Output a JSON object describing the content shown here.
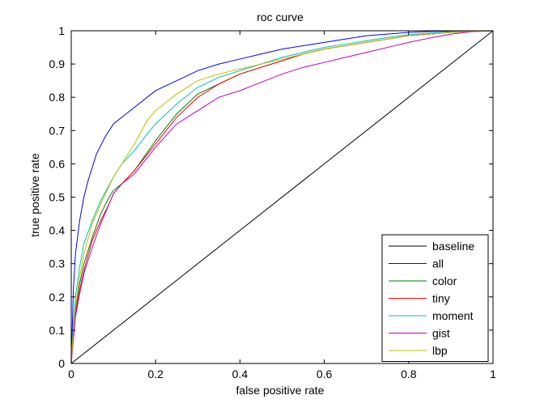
{
  "chart_data": {
    "type": "line",
    "title": "roc curve",
    "xlabel": "false positive rate",
    "ylabel": "true positive rate",
    "xlim": [
      0,
      1
    ],
    "ylim": [
      0,
      1
    ],
    "xticks": [
      "0",
      "0.2",
      "0.4",
      "0.6",
      "0.8",
      "1"
    ],
    "yticks": [
      "0",
      "0.1",
      "0.2",
      "0.3",
      "0.4",
      "0.5",
      "0.6",
      "0.7",
      "0.8",
      "0.9",
      "1"
    ],
    "grid": false,
    "legend_position": "bottom-right",
    "series": [
      {
        "name": "baseline",
        "color": "#000000",
        "x": [
          0,
          1
        ],
        "y": [
          0,
          1
        ]
      },
      {
        "name": "all",
        "color": "#0000ff",
        "x": [
          0,
          0.005,
          0.01,
          0.02,
          0.03,
          0.04,
          0.05,
          0.06,
          0.08,
          0.1,
          0.12,
          0.15,
          0.18,
          0.2,
          0.25,
          0.3,
          0.35,
          0.4,
          0.45,
          0.5,
          0.55,
          0.6,
          0.65,
          0.7,
          0.75,
          0.8,
          0.85,
          0.9,
          0.95,
          1
        ],
        "y": [
          0,
          0.22,
          0.33,
          0.43,
          0.5,
          0.55,
          0.59,
          0.63,
          0.68,
          0.72,
          0.74,
          0.77,
          0.8,
          0.82,
          0.85,
          0.88,
          0.9,
          0.915,
          0.93,
          0.945,
          0.955,
          0.965,
          0.975,
          0.985,
          0.99,
          0.995,
          0.998,
          0.999,
          1.0,
          1.0
        ]
      },
      {
        "name": "color",
        "color": "#008000",
        "x": [
          0,
          0.005,
          0.01,
          0.02,
          0.03,
          0.05,
          0.07,
          0.09,
          0.1,
          0.12,
          0.15,
          0.2,
          0.25,
          0.3,
          0.35,
          0.4,
          0.45,
          0.5,
          0.55,
          0.6,
          0.65,
          0.7,
          0.75,
          0.8,
          0.85,
          0.9,
          0.95,
          1
        ],
        "y": [
          0,
          0.1,
          0.16,
          0.24,
          0.3,
          0.38,
          0.45,
          0.5,
          0.52,
          0.54,
          0.58,
          0.67,
          0.75,
          0.81,
          0.84,
          0.87,
          0.89,
          0.91,
          0.93,
          0.945,
          0.955,
          0.965,
          0.975,
          0.985,
          0.99,
          0.995,
          0.998,
          1.0
        ]
      },
      {
        "name": "tiny",
        "color": "#ff0000",
        "x": [
          0,
          0.005,
          0.01,
          0.02,
          0.03,
          0.05,
          0.07,
          0.09,
          0.1,
          0.12,
          0.15,
          0.2,
          0.25,
          0.3,
          0.35,
          0.4,
          0.45,
          0.5,
          0.55,
          0.6,
          0.65,
          0.7,
          0.75,
          0.8,
          0.85,
          0.9,
          0.95,
          1
        ],
        "y": [
          0,
          0.08,
          0.15,
          0.22,
          0.28,
          0.37,
          0.43,
          0.48,
          0.51,
          0.54,
          0.58,
          0.66,
          0.74,
          0.8,
          0.84,
          0.87,
          0.89,
          0.91,
          0.93,
          0.945,
          0.955,
          0.965,
          0.975,
          0.985,
          0.99,
          0.995,
          0.998,
          1.0
        ]
      },
      {
        "name": "moment",
        "color": "#00bfbf",
        "x": [
          0,
          0.005,
          0.01,
          0.02,
          0.03,
          0.05,
          0.07,
          0.1,
          0.12,
          0.15,
          0.18,
          0.2,
          0.25,
          0.3,
          0.35,
          0.4,
          0.45,
          0.5,
          0.55,
          0.6,
          0.65,
          0.7,
          0.75,
          0.8,
          0.85,
          0.9,
          0.95,
          1
        ],
        "y": [
          0,
          0.12,
          0.2,
          0.29,
          0.36,
          0.43,
          0.49,
          0.56,
          0.6,
          0.64,
          0.69,
          0.72,
          0.78,
          0.83,
          0.86,
          0.88,
          0.9,
          0.92,
          0.935,
          0.95,
          0.96,
          0.97,
          0.98,
          0.988,
          0.993,
          0.997,
          0.999,
          1.0
        ]
      },
      {
        "name": "gist",
        "color": "#bf00bf",
        "x": [
          0,
          0.005,
          0.01,
          0.02,
          0.03,
          0.05,
          0.07,
          0.09,
          0.1,
          0.12,
          0.15,
          0.2,
          0.25,
          0.3,
          0.35,
          0.4,
          0.45,
          0.5,
          0.55,
          0.6,
          0.65,
          0.7,
          0.75,
          0.8,
          0.85,
          0.9,
          0.95,
          1
        ],
        "y": [
          0,
          0.07,
          0.14,
          0.21,
          0.27,
          0.35,
          0.42,
          0.48,
          0.51,
          0.54,
          0.57,
          0.65,
          0.72,
          0.76,
          0.8,
          0.82,
          0.845,
          0.87,
          0.89,
          0.905,
          0.92,
          0.935,
          0.95,
          0.965,
          0.978,
          0.99,
          0.997,
          1.0
        ]
      },
      {
        "name": "lbp",
        "color": "#bfbf00",
        "x": [
          0,
          0.005,
          0.01,
          0.02,
          0.03,
          0.05,
          0.07,
          0.1,
          0.12,
          0.15,
          0.18,
          0.2,
          0.25,
          0.3,
          0.35,
          0.4,
          0.45,
          0.5,
          0.55,
          0.6,
          0.65,
          0.7,
          0.75,
          0.8,
          0.85,
          0.9,
          0.95,
          1
        ],
        "y": [
          0,
          0.1,
          0.17,
          0.26,
          0.33,
          0.42,
          0.48,
          0.56,
          0.6,
          0.66,
          0.73,
          0.76,
          0.81,
          0.85,
          0.87,
          0.885,
          0.9,
          0.915,
          0.93,
          0.945,
          0.955,
          0.965,
          0.975,
          0.985,
          0.99,
          0.995,
          0.998,
          1.0
        ]
      }
    ]
  }
}
